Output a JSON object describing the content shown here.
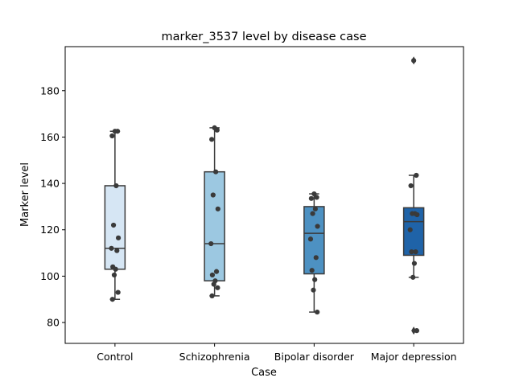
{
  "chart_data": {
    "type": "box",
    "title": "marker_3537 level by disease case",
    "xlabel": "Case",
    "ylabel": "Marker level",
    "ylim": [
      71,
      199
    ],
    "yticks": [
      80,
      100,
      120,
      140,
      160,
      180
    ],
    "grid": false,
    "categories": [
      "Control",
      "Schizophrenia",
      "Bipolar disorder",
      "Major depression"
    ],
    "colors": [
      "#d6e6f4",
      "#9cc8e1",
      "#4d91c2",
      "#1f63a8"
    ],
    "boxes": [
      {
        "category": "Control",
        "whisker_low": 90,
        "q1": 103,
        "median": 112,
        "q3": 139,
        "whisker_high": 162.5,
        "outliers": []
      },
      {
        "category": "Schizophrenia",
        "whisker_low": 91.5,
        "q1": 98,
        "median": 114,
        "q3": 145,
        "whisker_high": 164,
        "outliers": []
      },
      {
        "category": "Bipolar disorder",
        "whisker_low": 84.5,
        "q1": 101,
        "median": 118.5,
        "q3": 130,
        "whisker_high": 135.5,
        "outliers": []
      },
      {
        "category": "Major depression",
        "whisker_low": 99.5,
        "q1": 109,
        "median": 123.5,
        "q3": 129.5,
        "whisker_high": 143.5,
        "outliers": [
          76.5,
          193
        ]
      }
    ],
    "points": [
      {
        "category": "Control",
        "values": [
          162.5,
          162.5,
          160.5,
          139,
          122,
          116.5,
          112,
          111,
          104,
          103,
          100.5,
          93,
          90
        ]
      },
      {
        "category": "Schizophrenia",
        "values": [
          164,
          163,
          159,
          145,
          135,
          129,
          114,
          102,
          100.5,
          98,
          96.5,
          95,
          91.5
        ]
      },
      {
        "category": "Bipolar disorder",
        "values": [
          135.5,
          134,
          133.5,
          129,
          127,
          121.5,
          116,
          108,
          102.5,
          98.5,
          94,
          84.5
        ]
      },
      {
        "category": "Major depression",
        "values": [
          193,
          143.5,
          139,
          127,
          127,
          126.5,
          120,
          110.5,
          110.5,
          105.5,
          99.5,
          76.5
        ]
      }
    ]
  }
}
